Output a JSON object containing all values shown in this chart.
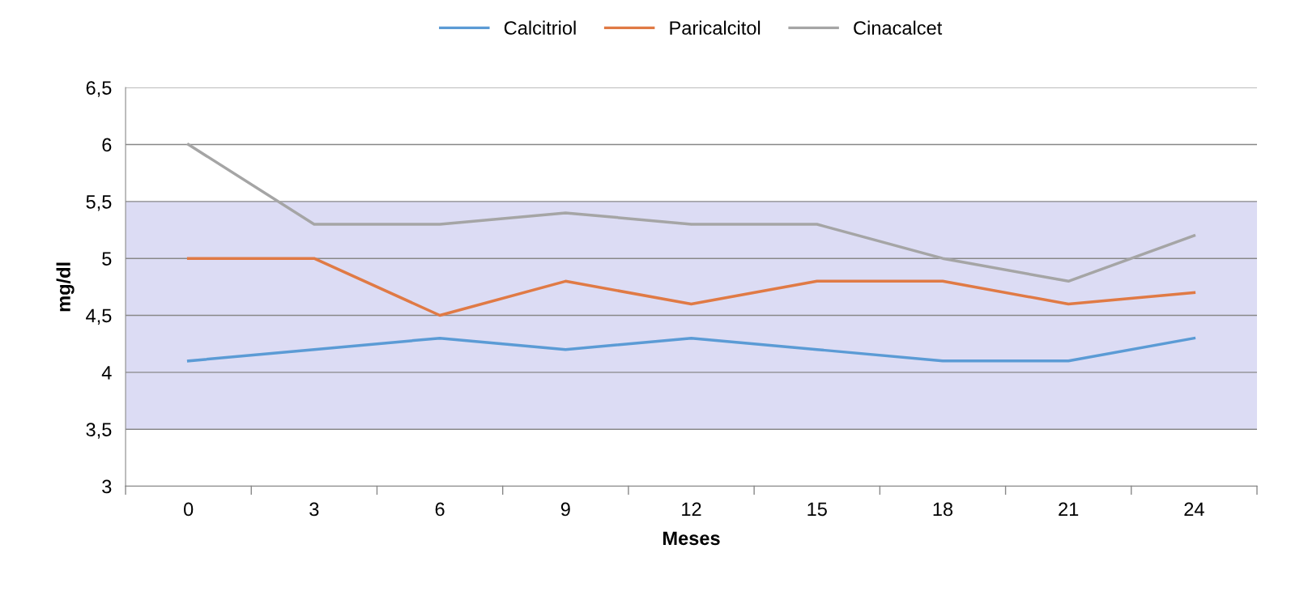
{
  "chart_data": {
    "type": "line",
    "xlabel": "Meses",
    "ylabel": "mg/dl",
    "categories": [
      "0",
      "3",
      "6",
      "9",
      "12",
      "15",
      "18",
      "21",
      "24"
    ],
    "series": [
      {
        "name": "Calcitriol",
        "color": "#5b9bd5",
        "values": [
          4.1,
          4.2,
          4.3,
          4.2,
          4.3,
          4.2,
          4.1,
          4.1,
          4.3
        ]
      },
      {
        "name": "Paricalcitol",
        "color": "#e07a45",
        "values": [
          5.0,
          5.0,
          4.5,
          4.8,
          4.6,
          4.8,
          4.8,
          4.6,
          4.7
        ]
      },
      {
        "name": "Cinacalcet",
        "color": "#a5a5a5",
        "values": [
          6.0,
          5.3,
          5.3,
          5.4,
          5.3,
          5.3,
          5.0,
          4.8,
          5.2
        ]
      }
    ],
    "ylim": [
      3,
      6.5
    ],
    "yticks": [
      3,
      {
        "value": 3.5,
        "label": "3,5"
      },
      4,
      {
        "value": 4.5,
        "label": "4,5"
      },
      5,
      {
        "value": 5.5,
        "label": "5,5"
      },
      6,
      {
        "value": 6.5,
        "label": "6,5"
      }
    ],
    "bands": [
      {
        "axis": "y",
        "from": 3.5,
        "to": 5.5,
        "color": "#dcdcf4"
      }
    ],
    "grid": "y",
    "legend": "top",
    "marker": "none",
    "line_style": "solid"
  }
}
